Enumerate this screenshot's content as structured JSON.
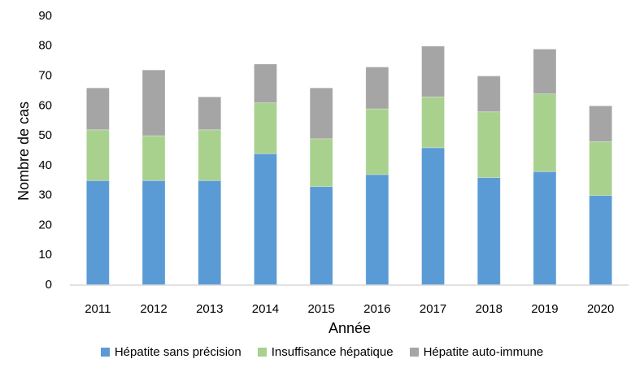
{
  "chart_data": {
    "type": "bar",
    "stacked": true,
    "title": "",
    "xlabel": "Année",
    "ylabel": "Nombre de cas",
    "ylim": [
      0,
      90
    ],
    "yticks": [
      0,
      10,
      20,
      30,
      40,
      50,
      60,
      70,
      80,
      90
    ],
    "grid": false,
    "legend_position": "bottom",
    "categories": [
      "2011",
      "2012",
      "2013",
      "2014",
      "2015",
      "2016",
      "2017",
      "2018",
      "2019",
      "2020"
    ],
    "series": [
      {
        "name": "Hépatite sans précision",
        "color": "#5B9BD5",
        "values": [
          35,
          35,
          35,
          44,
          33,
          37,
          46,
          36,
          38,
          30
        ]
      },
      {
        "name": "Insuffisance hépatique",
        "color": "#A9D18E",
        "values": [
          17,
          15,
          17,
          17,
          16,
          22,
          17,
          22,
          26,
          18
        ]
      },
      {
        "name": "Hépatite auto-immune",
        "color": "#A5A5A5",
        "values": [
          14,
          22,
          11,
          13,
          17,
          14,
          17,
          12,
          15,
          12
        ]
      }
    ],
    "totals": [
      66,
      72,
      63,
      74,
      66,
      73,
      80,
      70,
      79,
      60
    ]
  },
  "colors": {
    "axis_line": "#D9D9D9"
  }
}
